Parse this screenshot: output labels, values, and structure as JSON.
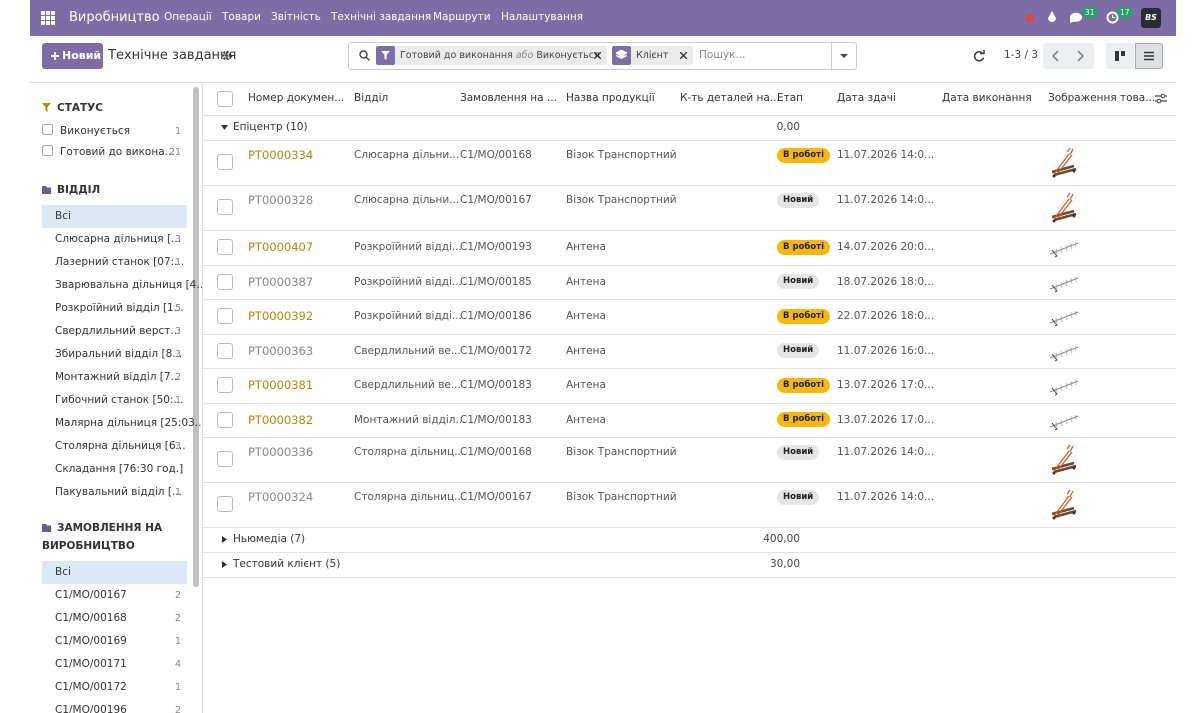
{
  "navbar": {
    "app_name": "Виробництво",
    "menu": [
      "Операції",
      "Товари",
      "Звітність",
      "Технічні завдання",
      "Маршрути",
      "Налаштування"
    ],
    "messages_badge": "31",
    "activities_badge": "17",
    "avatar": "BS"
  },
  "control_panel": {
    "new_button": "Новий",
    "title": "Технічне завдання",
    "facets": [
      {
        "values": [
          "Готовий до виконання",
          "Виконується"
        ],
        "separator": "або"
      },
      {
        "values": [
          "Клієнт"
        ]
      }
    ],
    "search_placeholder": "Пошук...",
    "pager": "1-3 / 3"
  },
  "sidebar": {
    "sections": [
      {
        "title": "СТАТУС",
        "items": [
          {
            "label": "Виконується",
            "count": "1"
          },
          {
            "label": "Готовий до викона...",
            "count": "21"
          }
        ]
      },
      {
        "title": "ВІДДІЛ",
        "all_label": "Всі",
        "items": [
          {
            "label": "Слюсарна дільниця [...",
            "count": "3"
          },
          {
            "label": "Лазерний станок [07:...",
            "count": "1"
          },
          {
            "label": "Зварювальна дільниця [4..."
          },
          {
            "label": "Розкроїйний відділ [1...",
            "count": "5"
          },
          {
            "label": "Свердлильний верст...",
            "count": "3"
          },
          {
            "label": "Збиральний відділ [8...",
            "count": "3"
          },
          {
            "label": "Монтажний відділ [7...",
            "count": "2"
          },
          {
            "label": "Гибочний станок [50:...",
            "count": "1"
          },
          {
            "label": "Малярна дільниця [25:03..."
          },
          {
            "label": "Столярна дільниця [6...",
            "count": "3"
          },
          {
            "label": "Складання [76:30 год.]"
          },
          {
            "label": "Пакувальний відділ [...",
            "count": "1"
          }
        ]
      },
      {
        "title": "ЗАМОВЛЕННЯ НА ВИРОБНИЦТВО",
        "all_label": "Всі",
        "items": [
          {
            "label": "C1/MO/00167",
            "count": "2"
          },
          {
            "label": "C1/MO/00168",
            "count": "2"
          },
          {
            "label": "C1/MO/00169",
            "count": "1"
          },
          {
            "label": "C1/MO/00171",
            "count": "4"
          },
          {
            "label": "C1/MO/00172",
            "count": "1"
          },
          {
            "label": "C1/MO/00196",
            "count": "2"
          }
        ]
      }
    ]
  },
  "table": {
    "columns": [
      "Номер докумен...",
      "Відділ",
      "Замовлення на ...",
      "Назва продукції",
      "К-ть деталей на...",
      "Етап",
      "Дата здачі",
      "Дата виконання",
      "Зображення това..."
    ],
    "groups": [
      {
        "label": "Епіцентр (10)",
        "total": "0,00",
        "rows": [
          {
            "number": "PT0000334",
            "department": "Слюсарна дільни...",
            "order": "C1/MO/00168",
            "product": "Візок Транспортний",
            "stage": "В роботі",
            "deadline": "11.07.2026 14:0..."
          },
          {
            "number": "PT0000328",
            "department": "Слюсарна дільни...",
            "order": "C1/MO/00167",
            "product": "Візок Транспортний",
            "stage": "Новий",
            "deadline": "11.07.2026 14:0..."
          },
          {
            "number": "PT0000407",
            "department": "Розкроїйний відді...",
            "order": "C1/MO/00193",
            "product": "Антена",
            "stage": "В роботі",
            "deadline": "14.07.2026 20:0..."
          },
          {
            "number": "PT0000387",
            "department": "Розкроїйний відді...",
            "order": "C1/MO/00185",
            "product": "Антена",
            "stage": "Новий",
            "deadline": "18.07.2026 18:0..."
          },
          {
            "number": "PT0000392",
            "department": "Розкроїйний відді...",
            "order": "C1/MO/00186",
            "product": "Антена",
            "stage": "В роботі",
            "deadline": "22.07.2026 18:0..."
          },
          {
            "number": "PT0000363",
            "department": "Свердлильний ве...",
            "order": "C1/MO/00172",
            "product": "Антена",
            "stage": "Новий",
            "deadline": "11.07.2026 16:0..."
          },
          {
            "number": "PT0000381",
            "department": "Свердлильний ве...",
            "order": "C1/MO/00183",
            "product": "Антена",
            "stage": "В роботі",
            "deadline": "13.07.2026 17:0..."
          },
          {
            "number": "PT0000382",
            "department": "Монтажний відділ...",
            "order": "C1/MO/00183",
            "product": "Антена",
            "stage": "В роботі",
            "deadline": "13.07.2026 17:0..."
          },
          {
            "number": "PT0000336",
            "department": "Столярна дільниц...",
            "order": "C1/MO/00168",
            "product": "Візок Транспортний",
            "stage": "Новий",
            "deadline": "11.07.2026 14:0..."
          },
          {
            "number": "PT0000324",
            "department": "Столярна дільниц...",
            "order": "C1/MO/00167",
            "product": "Візок Транспортний",
            "stage": "Новий",
            "deadline": "11.07.2026 14:0..."
          }
        ]
      },
      {
        "label": "Ньюмедіа (7)",
        "total": "400,00",
        "rows": []
      },
      {
        "label": "Тестовий клієнт (5)",
        "total": "30,00",
        "rows": []
      }
    ]
  }
}
